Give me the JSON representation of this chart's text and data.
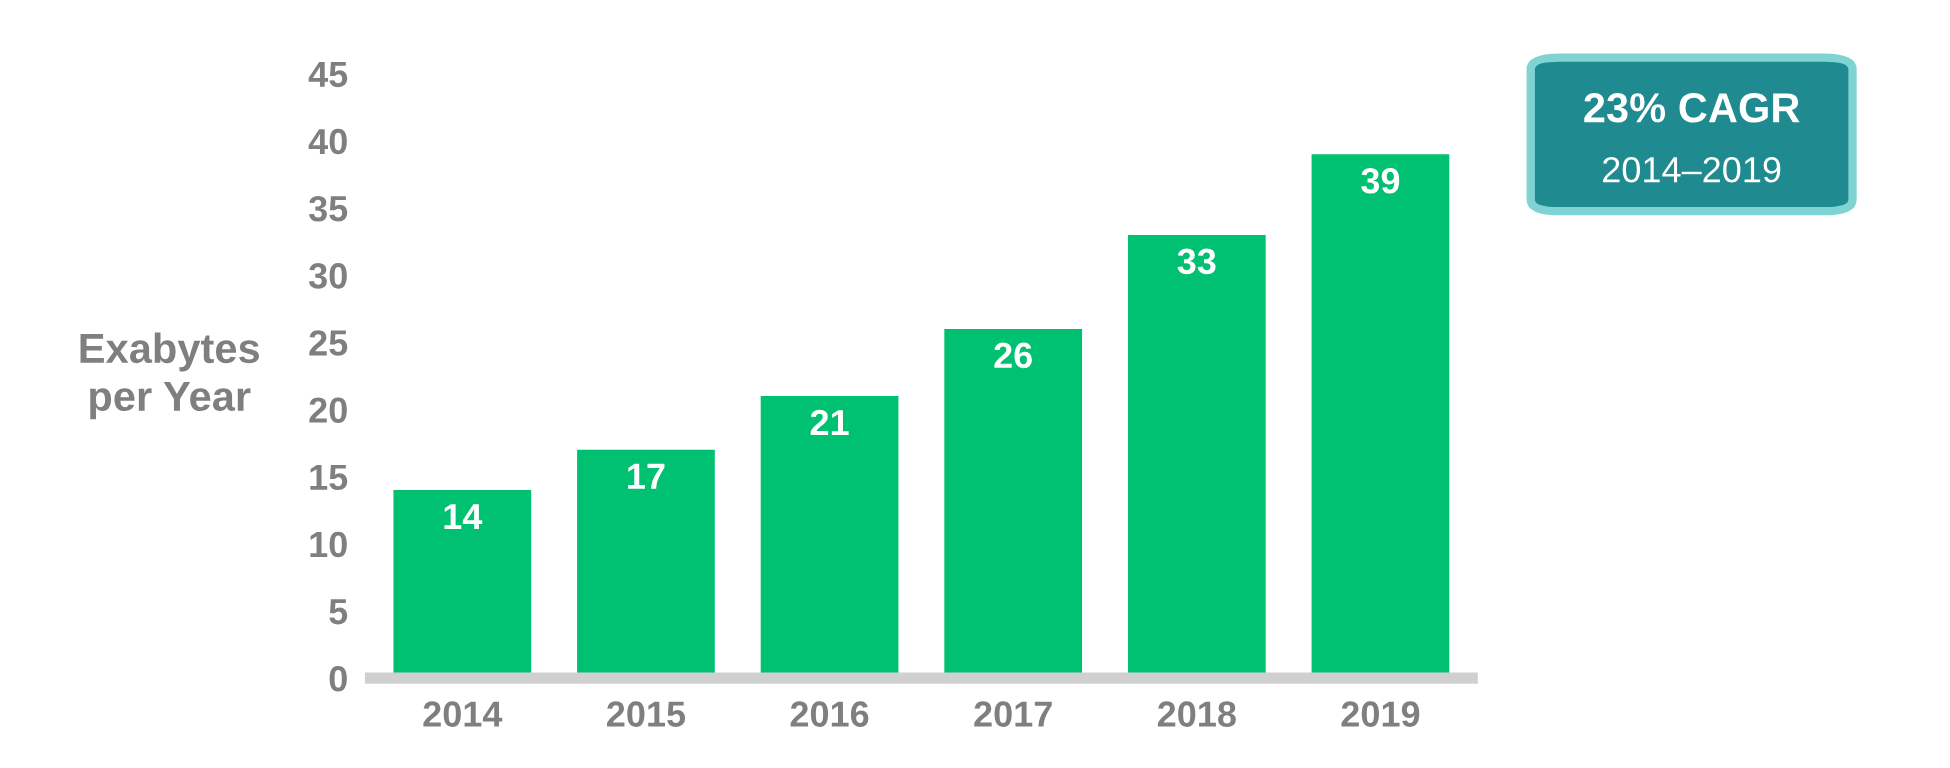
{
  "chart_data": {
    "type": "bar",
    "ylabel": "Exabytes\nper Year",
    "categories": [
      "2014",
      "2015",
      "2016",
      "2017",
      "2018",
      "2019"
    ],
    "values": [
      14,
      17,
      21,
      26,
      33,
      39
    ],
    "color": "#00c072",
    "ylim": [
      0,
      45
    ],
    "yticks": [
      0,
      5,
      10,
      15,
      20,
      25,
      30,
      35,
      40,
      45
    ],
    "grid": false,
    "data_labels": true,
    "annotations": [
      "23% CAGR",
      "2014–2019"
    ]
  }
}
